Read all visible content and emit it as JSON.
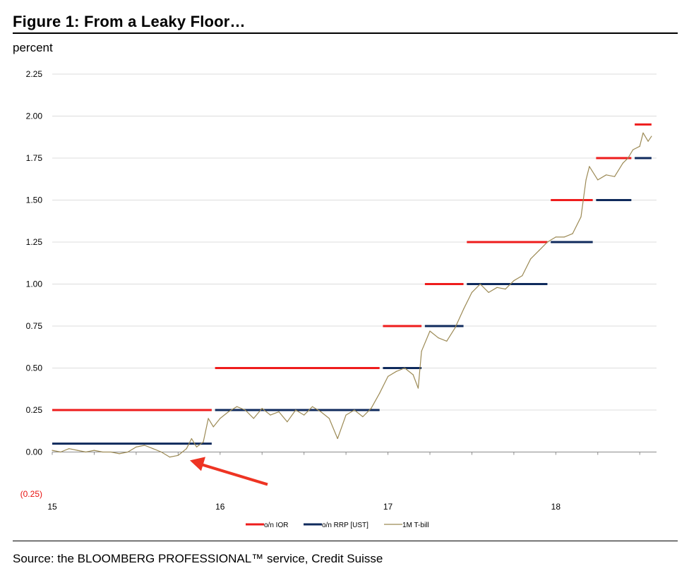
{
  "figure": {
    "title": "Figure 1: From a Leaky Floor…",
    "unit_label": "percent",
    "source": "Source: the BLOOMBERG PROFESSIONAL™ service, Credit Suisse"
  },
  "chart_data": {
    "type": "line",
    "title": "Figure 1: From a Leaky Floor…",
    "ylabel": "percent",
    "xlabel": "",
    "xlim": [
      15,
      18.6
    ],
    "ylim": [
      -0.25,
      2.25
    ],
    "x_ticks": [
      "15",
      "16",
      "17",
      "18"
    ],
    "y_ticks": [
      "2.25",
      "2.00",
      "1.75",
      "1.50",
      "1.25",
      "1.00",
      "0.75",
      "0.50",
      "0.25",
      "0.00",
      "(0.25)"
    ],
    "negative_tick_color": "#e8110f",
    "grid": true,
    "legend_position": "bottom",
    "series": [
      {
        "name": "o/n IOR",
        "color": "#ee1c1c",
        "style": "step",
        "segments": [
          {
            "x0": 15.0,
            "x1": 15.95,
            "y": 0.25
          },
          {
            "x0": 15.97,
            "x1": 16.95,
            "y": 0.5
          },
          {
            "x0": 16.97,
            "x1": 17.2,
            "y": 0.75
          },
          {
            "x0": 17.22,
            "x1": 17.45,
            "y": 1.0
          },
          {
            "x0": 17.47,
            "x1": 17.95,
            "y": 1.25
          },
          {
            "x0": 17.97,
            "x1": 18.22,
            "y": 1.5
          },
          {
            "x0": 18.24,
            "x1": 18.45,
            "y": 1.75
          },
          {
            "x0": 18.47,
            "x1": 18.57,
            "y": 1.95
          }
        ]
      },
      {
        "name": "o/n RRP [UST]",
        "color": "#0f2a5c",
        "style": "step",
        "segments": [
          {
            "x0": 15.0,
            "x1": 15.95,
            "y": 0.05
          },
          {
            "x0": 15.97,
            "x1": 16.95,
            "y": 0.25
          },
          {
            "x0": 16.97,
            "x1": 17.2,
            "y": 0.5
          },
          {
            "x0": 17.22,
            "x1": 17.45,
            "y": 0.75
          },
          {
            "x0": 17.47,
            "x1": 17.95,
            "y": 1.0
          },
          {
            "x0": 17.97,
            "x1": 18.22,
            "y": 1.25
          },
          {
            "x0": 18.24,
            "x1": 18.45,
            "y": 1.5
          },
          {
            "x0": 18.47,
            "x1": 18.57,
            "y": 1.75
          }
        ]
      },
      {
        "name": "1M T-bill",
        "color": "#9c8a55",
        "style": "line",
        "x": [
          15.0,
          15.05,
          15.1,
          15.15,
          15.2,
          15.25,
          15.3,
          15.35,
          15.4,
          15.45,
          15.5,
          15.55,
          15.6,
          15.65,
          15.7,
          15.75,
          15.8,
          15.83,
          15.86,
          15.9,
          15.93,
          15.96,
          16.0,
          16.05,
          16.1,
          16.15,
          16.2,
          16.25,
          16.3,
          16.35,
          16.4,
          16.45,
          16.5,
          16.55,
          16.6,
          16.65,
          16.7,
          16.75,
          16.8,
          16.85,
          16.9,
          16.95,
          17.0,
          17.05,
          17.1,
          17.15,
          17.18,
          17.2,
          17.25,
          17.3,
          17.35,
          17.4,
          17.45,
          17.5,
          17.55,
          17.6,
          17.65,
          17.7,
          17.75,
          17.8,
          17.85,
          17.9,
          17.95,
          18.0,
          18.05,
          18.1,
          18.15,
          18.18,
          18.2,
          18.25,
          18.3,
          18.35,
          18.4,
          18.43,
          18.46,
          18.5,
          18.52,
          18.55,
          18.57
        ],
        "values": [
          0.01,
          0.0,
          0.02,
          0.01,
          0.0,
          0.01,
          0.0,
          0.0,
          -0.01,
          0.0,
          0.03,
          0.04,
          0.02,
          0.0,
          -0.03,
          -0.02,
          0.02,
          0.08,
          0.03,
          0.06,
          0.2,
          0.15,
          0.2,
          0.24,
          0.27,
          0.25,
          0.2,
          0.26,
          0.22,
          0.24,
          0.18,
          0.25,
          0.22,
          0.27,
          0.24,
          0.2,
          0.08,
          0.22,
          0.25,
          0.21,
          0.26,
          0.35,
          0.45,
          0.48,
          0.5,
          0.46,
          0.38,
          0.6,
          0.72,
          0.68,
          0.66,
          0.74,
          0.85,
          0.95,
          1.0,
          0.95,
          0.98,
          0.97,
          1.02,
          1.05,
          1.15,
          1.2,
          1.25,
          1.28,
          1.28,
          1.3,
          1.4,
          1.62,
          1.7,
          1.62,
          1.65,
          1.64,
          1.72,
          1.75,
          1.8,
          1.82,
          1.9,
          1.85,
          1.88
        ]
      }
    ],
    "annotations": [
      {
        "type": "arrow",
        "color": "#ee3423",
        "points_to": {
          "x": 15.82,
          "y": -0.05
        }
      }
    ]
  }
}
